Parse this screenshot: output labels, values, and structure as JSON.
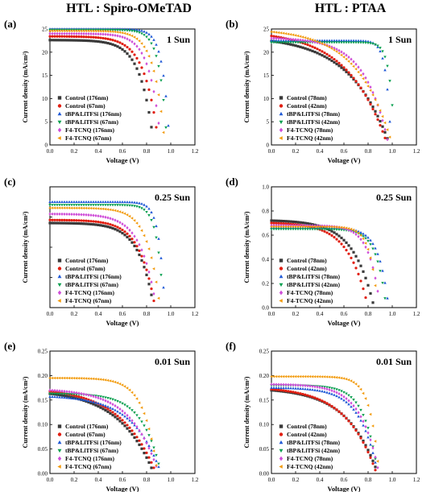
{
  "column_titles": [
    "HTL : Spiro-OMeTAD",
    "HTL : PTAA"
  ],
  "colors": {
    "black": "#3a3a3a",
    "red": "#e11f12",
    "blue": "#1f59d6",
    "green": "#0aa050",
    "magenta": "#cf4fd8",
    "orange": "#f29a0a"
  },
  "chart_data": [
    {
      "panel": "(a)",
      "type": "line",
      "condition": "1 Sun",
      "xlabel": "Voltage (V)",
      "ylabel": "Current density (mA/cm²)",
      "xlim": [
        0,
        1.2
      ],
      "ylim": [
        0,
        25
      ],
      "xticks": [
        0.0,
        0.2,
        0.4,
        0.6,
        0.8,
        1.0,
        1.2
      ],
      "yticks": [
        0,
        5,
        10,
        15,
        20,
        25
      ],
      "yticklabels": [
        "0",
        "5",
        "10",
        "15",
        "20",
        "25"
      ],
      "legend": "bottom-left",
      "series": [
        {
          "name": "Control (176nm)",
          "color": "black",
          "marker": "square",
          "jsc": 22.6,
          "voc": 0.86,
          "n": 8
        },
        {
          "name": "Control (67nm)",
          "color": "red",
          "marker": "circle",
          "jsc": 23.4,
          "voc": 0.9,
          "n": 8
        },
        {
          "name": "tBP&LiTFSi (176nm)",
          "color": "blue",
          "marker": "triangle-up",
          "jsc": 25.0,
          "voc": 0.99,
          "n": 18
        },
        {
          "name": "tBP&LiTFSi (67nm)",
          "color": "green",
          "marker": "triangle-down",
          "jsc": 24.8,
          "voc": 0.97,
          "n": 16
        },
        {
          "name": "F4-TCNQ (176nm)",
          "color": "magenta",
          "marker": "diamond",
          "jsc": 24.0,
          "voc": 0.92,
          "n": 10
        },
        {
          "name": "F4-TCNQ (67nm)",
          "color": "orange",
          "marker": "triangle-left",
          "jsc": 24.6,
          "voc": 0.95,
          "n": 11
        }
      ]
    },
    {
      "panel": "(b)",
      "type": "line",
      "condition": "1 Sun",
      "xlabel": "Voltage (V)",
      "ylabel": "Current density (mA/cm²)",
      "xlim": [
        0,
        1.2
      ],
      "ylim": [
        0,
        25
      ],
      "xticks": [
        0.0,
        0.2,
        0.4,
        0.6,
        0.8,
        1.0,
        1.2
      ],
      "yticks": [
        0,
        5,
        10,
        15,
        20,
        25
      ],
      "yticklabels": [
        "0",
        "5",
        "10",
        "15",
        "20",
        "25"
      ],
      "legend": "bottom-left",
      "series": [
        {
          "name": "Control (78nm)",
          "color": "black",
          "marker": "square",
          "jsc": 22.4,
          "voc": 0.98,
          "n": 3
        },
        {
          "name": "Control (42nm)",
          "color": "red",
          "marker": "circle",
          "jsc": 23.5,
          "voc": 0.96,
          "n": 3
        },
        {
          "name": "tBP&LiTFSi (78nm)",
          "color": "blue",
          "marker": "triangle-up",
          "jsc": 22.5,
          "voc": 0.99,
          "n": 25
        },
        {
          "name": "tBP&LiTFSi (42nm)",
          "color": "green",
          "marker": "triangle-down",
          "jsc": 22.1,
          "voc": 1.02,
          "n": 25
        },
        {
          "name": "F4-TCNQ (78nm)",
          "color": "magenta",
          "marker": "diamond",
          "jsc": 23.0,
          "voc": 0.97,
          "n": 5
        },
        {
          "name": "F4-TCNQ (42nm)",
          "color": "orange",
          "marker": "triangle-left",
          "jsc": 24.4,
          "voc": 1.0,
          "n": 3.5
        }
      ]
    },
    {
      "panel": "(c)",
      "type": "line",
      "condition": "0.25 Sun",
      "xlabel": "Voltage (V)",
      "ylabel": "Current density (mA/cm²)",
      "xlim": [
        0,
        1.2
      ],
      "ylim": [
        0,
        8
      ],
      "xticks": [
        0.0,
        0.2,
        0.4,
        0.6,
        0.8,
        1.0,
        1.2
      ],
      "yticks": [
        0,
        2,
        4,
        6,
        8
      ],
      "yticklabels": [
        "",
        "",
        "",
        "",
        ""
      ],
      "legend": "bottom-left",
      "series": [
        {
          "name": "Control (176nm)",
          "color": "black",
          "marker": "square",
          "jsc": 5.6,
          "voc": 0.86,
          "n": 7
        },
        {
          "name": "Control (67nm)",
          "color": "red",
          "marker": "circle",
          "jsc": 5.8,
          "voc": 0.87,
          "n": 7
        },
        {
          "name": "tBP&LiTFSi (176nm)",
          "color": "blue",
          "marker": "triangle-up",
          "jsc": 7.0,
          "voc": 0.95,
          "n": 20
        },
        {
          "name": "tBP&LiTFSi (67nm)",
          "color": "green",
          "marker": "triangle-down",
          "jsc": 6.8,
          "voc": 0.94,
          "n": 18
        },
        {
          "name": "F4-TCNQ (176nm)",
          "color": "magenta",
          "marker": "diamond",
          "jsc": 6.2,
          "voc": 0.88,
          "n": 7
        },
        {
          "name": "F4-TCNQ (67nm)",
          "color": "orange",
          "marker": "triangle-left",
          "jsc": 6.6,
          "voc": 0.91,
          "n": 9
        }
      ]
    },
    {
      "panel": "(d)",
      "type": "line",
      "condition": "0.25 Sun",
      "xlabel": "Voltage (V)",
      "ylabel": "Current density (mA/cm²)",
      "xlim": [
        0,
        1.2
      ],
      "ylim": [
        0,
        1.0
      ],
      "xticks": [
        0.0,
        0.2,
        0.4,
        0.6,
        0.8,
        1.0,
        1.2
      ],
      "yticks": [
        0,
        0.2,
        0.4,
        0.6,
        0.8,
        1.0
      ],
      "yticklabels": [
        "0.0",
        "0.2",
        "0.4",
        "0.6",
        "0.8",
        "1.0"
      ],
      "legend": "bottom-left",
      "series": [
        {
          "name": "Control (78nm)",
          "color": "black",
          "marker": "square",
          "jsc": 0.72,
          "voc": 0.85,
          "n": 5
        },
        {
          "name": "Control (42nm)",
          "color": "red",
          "marker": "circle",
          "jsc": 0.7,
          "voc": 0.8,
          "n": 5
        },
        {
          "name": "tBP&LiTFSi (78nm)",
          "color": "blue",
          "marker": "triangle-up",
          "jsc": 0.66,
          "voc": 0.97,
          "n": 12
        },
        {
          "name": "tBP&LiTFSi (42nm)",
          "color": "green",
          "marker": "triangle-down",
          "jsc": 0.65,
          "voc": 0.95,
          "n": 12
        },
        {
          "name": "F4-TCNQ (78nm)",
          "color": "magenta",
          "marker": "diamond",
          "jsc": 0.68,
          "voc": 0.9,
          "n": 10
        },
        {
          "name": "F4-TCNQ (42nm)",
          "color": "orange",
          "marker": "triangle-left",
          "jsc": 0.67,
          "voc": 0.88,
          "n": 14
        }
      ]
    },
    {
      "panel": "(e)",
      "type": "line",
      "condition": "0.01 Sun",
      "xlabel": "Voltage (V)",
      "ylabel": "Current density (mA/cm²)",
      "xlim": [
        0,
        1.2
      ],
      "ylim": [
        0,
        0.25
      ],
      "xticks": [
        0.0,
        0.2,
        0.4,
        0.6,
        0.8,
        1.0,
        1.2
      ],
      "yticks": [
        0,
        0.05,
        0.1,
        0.15,
        0.2,
        0.25
      ],
      "yticklabels": [
        "0.00",
        "0.05",
        "0.10",
        "0.15",
        "0.20",
        "0.25"
      ],
      "legend": "bottom-left",
      "series": [
        {
          "name": "Control (176nm)",
          "color": "black",
          "marker": "square",
          "jsc": 0.163,
          "voc": 0.86,
          "n": 3
        },
        {
          "name": "Control (67nm)",
          "color": "red",
          "marker": "circle",
          "jsc": 0.168,
          "voc": 0.88,
          "n": 3
        },
        {
          "name": "tBP&LiTFSi (176nm)",
          "color": "blue",
          "marker": "triangle-up",
          "jsc": 0.157,
          "voc": 0.92,
          "n": 4
        },
        {
          "name": "tBP&LiTFSi (67nm)",
          "color": "green",
          "marker": "triangle-down",
          "jsc": 0.163,
          "voc": 0.92,
          "n": 6
        },
        {
          "name": "F4-TCNQ (176nm)",
          "color": "magenta",
          "marker": "diamond",
          "jsc": 0.17,
          "voc": 0.9,
          "n": 4
        },
        {
          "name": "F4-TCNQ (67nm)",
          "color": "orange",
          "marker": "triangle-left",
          "jsc": 0.195,
          "voc": 0.89,
          "n": 8
        }
      ]
    },
    {
      "panel": "(f)",
      "type": "line",
      "condition": "0.01 Sun",
      "xlabel": "Voltage (V)",
      "ylabel": "Current density (mA/cm²)",
      "xlim": [
        0,
        1.2
      ],
      "ylim": [
        0,
        0.25
      ],
      "xticks": [
        0.0,
        0.2,
        0.4,
        0.6,
        0.8,
        1.0,
        1.2
      ],
      "yticks": [
        0,
        0.05,
        0.1,
        0.15,
        0.2,
        0.25
      ],
      "yticklabels": [
        "0.00",
        "0.05",
        "0.10",
        "0.15",
        "0.20",
        "0.25"
      ],
      "legend": "bottom-left",
      "series": [
        {
          "name": "Control (78nm)",
          "color": "black",
          "marker": "square",
          "jsc": 0.17,
          "voc": 0.88,
          "n": 3.5
        },
        {
          "name": "Control (42nm)",
          "color": "red",
          "marker": "circle",
          "jsc": 0.172,
          "voc": 0.87,
          "n": 3.5
        },
        {
          "name": "tBP&LiTFSi (78nm)",
          "color": "blue",
          "marker": "triangle-up",
          "jsc": 0.175,
          "voc": 0.88,
          "n": 6
        },
        {
          "name": "tBP&LiTFSi (42nm)",
          "color": "green",
          "marker": "triangle-down",
          "jsc": 0.18,
          "voc": 0.88,
          "n": 8
        },
        {
          "name": "F4-TCNQ (78nm)",
          "color": "magenta",
          "marker": "diamond",
          "jsc": 0.182,
          "voc": 0.89,
          "n": 6
        },
        {
          "name": "F4-TCNQ (42nm)",
          "color": "orange",
          "marker": "triangle-left",
          "jsc": 0.198,
          "voc": 0.89,
          "n": 12
        }
      ]
    }
  ]
}
